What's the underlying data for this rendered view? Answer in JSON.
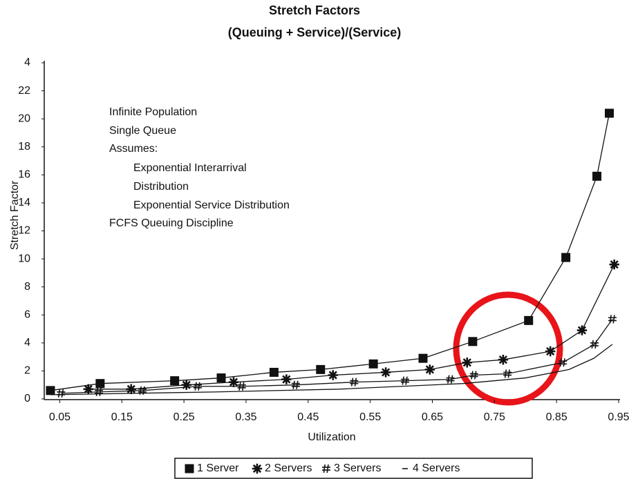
{
  "chart_data": {
    "type": "line",
    "title": "Stretch Factors",
    "subtitle": "(Queuing + Service)/(Service)",
    "x_label": "Utilization",
    "y_label": "Stretch Factor",
    "annotations": [
      "Infinite Population",
      "Single Queue",
      "Assumes:",
      "Exponential Interarrival",
      "Distribution",
      "Exponential Service Distribution",
      "FCFS Queuing Discipline"
    ],
    "xlim": [
      0.025,
      0.95
    ],
    "xticks": [
      0.05,
      0.15,
      0.25,
      0.35,
      0.45,
      0.55,
      0.65,
      0.75,
      0.85,
      0.95
    ],
    "ylim": [
      0,
      24
    ],
    "yticks": [
      0,
      2,
      4,
      6,
      8,
      10,
      12,
      14,
      16,
      18,
      20,
      22,
      {
        "value": 24,
        "label": "4"
      }
    ],
    "series": [
      {
        "name": "1 Server",
        "marker": "square",
        "color": "#111111",
        "x": [
          0.035,
          0.115,
          0.235,
          0.31,
          0.395,
          0.47,
          0.555,
          0.635,
          0.715,
          0.805,
          0.865,
          0.915,
          0.935
        ],
        "values": [
          0.6,
          1.1,
          1.3,
          1.5,
          1.9,
          2.1,
          2.5,
          2.9,
          4.1,
          5.6,
          10.1,
          15.9,
          20.4
        ]
      },
      {
        "name": "2 Servers",
        "marker": "star",
        "color": "#111111",
        "x": [
          0.096,
          0.165,
          0.254,
          0.33,
          0.415,
          0.49,
          0.575,
          0.646,
          0.706,
          0.764,
          0.84,
          0.891,
          0.943
        ],
        "values": [
          0.7,
          0.7,
          1.0,
          1.2,
          1.4,
          1.7,
          1.9,
          2.1,
          2.6,
          2.8,
          3.4,
          4.9,
          9.6
        ]
      },
      {
        "name": "3 Servers",
        "marker": "hash",
        "color": "#111111",
        "x": [
          0.052,
          0.113,
          0.183,
          0.272,
          0.343,
          0.43,
          0.524,
          0.606,
          0.679,
          0.717,
          0.771,
          0.86,
          0.911,
          0.94
        ],
        "values": [
          0.4,
          0.5,
          0.6,
          0.9,
          0.9,
          1.0,
          1.2,
          1.3,
          1.4,
          1.7,
          1.8,
          2.6,
          3.9,
          5.7
        ]
      },
      {
        "name": "4 Servers",
        "marker": "dash",
        "color": "#111111",
        "x": [
          0.035,
          0.3,
          0.5,
          0.7,
          0.8,
          0.87,
          0.91,
          0.94
        ],
        "values": [
          0.3,
          0.5,
          0.7,
          1.1,
          1.5,
          2.1,
          2.9,
          3.9
        ]
      }
    ]
  }
}
